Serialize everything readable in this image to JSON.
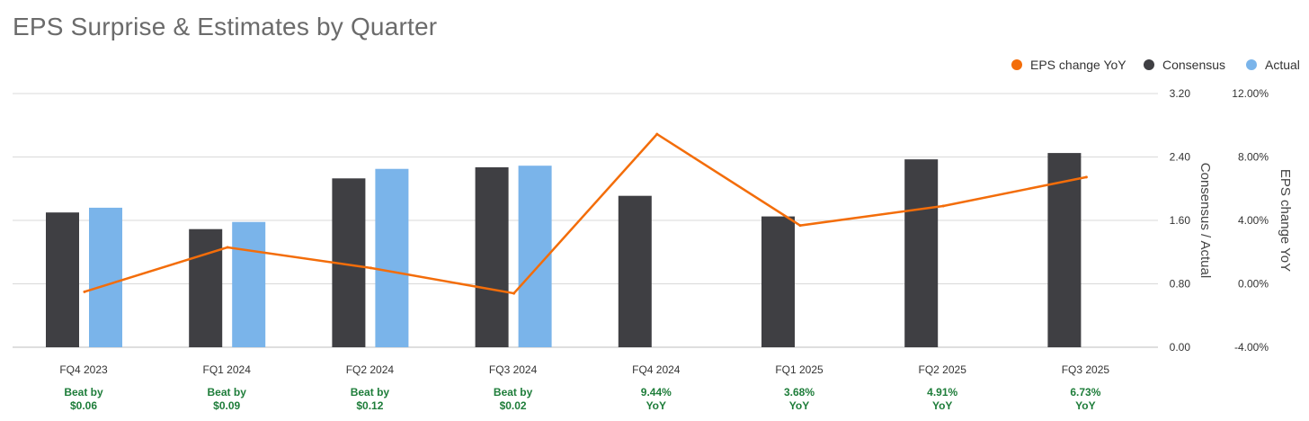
{
  "title": "EPS Surprise & Estimates by Quarter",
  "colors": {
    "consensus": "#3f3f43",
    "actual": "#7ab4ea",
    "eps_change": "#f36d0a",
    "grid": "#d9d9d9",
    "note_green": "#1e7d3a"
  },
  "legend": [
    {
      "label": "EPS change YoY",
      "color": "#f36d0a"
    },
    {
      "label": "Consensus",
      "color": "#3f3f43"
    },
    {
      "label": "Actual",
      "color": "#7ab4ea"
    }
  ],
  "chart_data": {
    "type": "bar",
    "title": "EPS Surprise & Estimates by Quarter",
    "categories": [
      "FQ4 2023",
      "FQ1 2024",
      "FQ2 2024",
      "FQ3 2024",
      "FQ4 2024",
      "FQ1 2025",
      "FQ2 2025",
      "FQ3 2025"
    ],
    "series": [
      {
        "name": "Consensus",
        "type": "bar",
        "axis": "left",
        "values": [
          1.7,
          1.49,
          2.13,
          2.27,
          1.91,
          1.65,
          2.37,
          2.45
        ]
      },
      {
        "name": "Actual",
        "type": "bar",
        "axis": "left",
        "values": [
          1.76,
          1.58,
          2.25,
          2.29,
          null,
          null,
          null,
          null
        ]
      },
      {
        "name": "EPS change YoY",
        "type": "line",
        "axis": "right",
        "values": [
          -0.5,
          2.3,
          1.0,
          -0.6,
          9.44,
          3.68,
          4.91,
          6.73
        ]
      }
    ],
    "left_axis": {
      "label": "Consensus / Actual",
      "ylim": [
        0,
        3.2
      ],
      "ticks": [
        "0.00",
        "0.80",
        "1.60",
        "2.40",
        "3.20"
      ]
    },
    "right_axis": {
      "label": "EPS change YoY",
      "ylim": [
        -4,
        12
      ],
      "ticks": [
        "-4.00%",
        "0.00%",
        "4.00%",
        "8.00%",
        "12.00%"
      ]
    },
    "notes": [
      [
        "Beat by",
        "$0.06"
      ],
      [
        "Beat by",
        "$0.09"
      ],
      [
        "Beat by",
        "$0.12"
      ],
      [
        "Beat by",
        "$0.02"
      ],
      [
        "9.44%",
        "YoY"
      ],
      [
        "3.68%",
        "YoY"
      ],
      [
        "4.91%",
        "YoY"
      ],
      [
        "6.73%",
        "YoY"
      ]
    ],
    "grid": true,
    "legend_position": "top-right"
  }
}
